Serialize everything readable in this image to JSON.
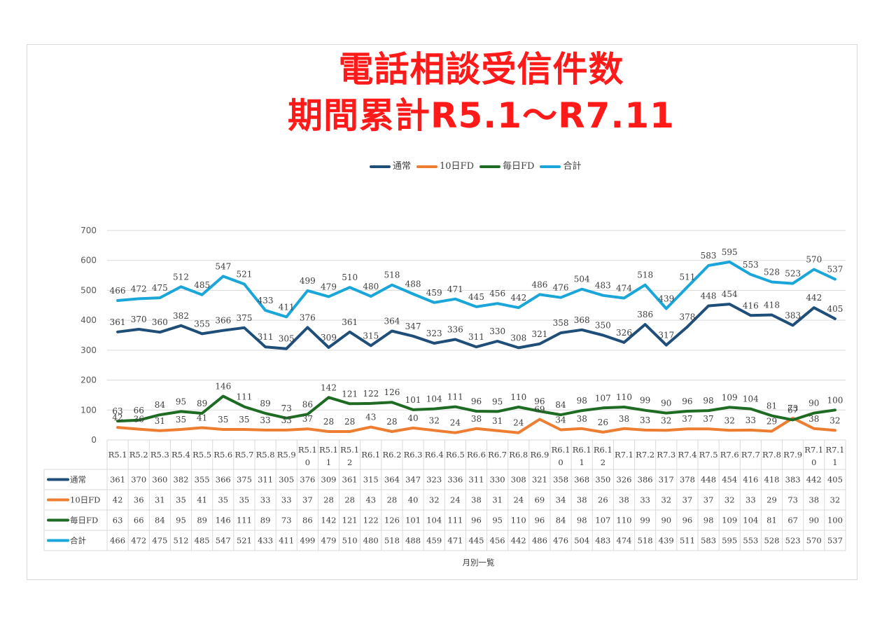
{
  "title_lines": [
    "電話相談受信件数",
    "期間累計R5.1～R7.11"
  ],
  "colors": {
    "title": "#ff1a1a",
    "series": [
      "#1f4e79",
      "#ed7d31",
      "#1e6b23",
      "#1aa6d8"
    ]
  },
  "xaxis_title": "月別一覧",
  "chart_data": {
    "type": "line",
    "title": "電話相談受信件数 期間累計R5.1～R7.11",
    "xlabel": "月別一覧",
    "ylabel": "",
    "ylim": [
      0,
      700
    ],
    "yticks": [
      0,
      100,
      200,
      300,
      400,
      500,
      600,
      700
    ],
    "grid": true,
    "legend": "top-center",
    "data_table": true,
    "categories": [
      "R5.1",
      "R5.2",
      "R5.3",
      "R5.4",
      "R5.5",
      "R5.6",
      "R5.7",
      "R5.8",
      "R5.9",
      "R5.10",
      "R5.11",
      "R5.12",
      "R6.1",
      "R6.2",
      "R6.3",
      "R6.4",
      "R6.5",
      "R6.6",
      "R6.7",
      "R6.8",
      "R6.9",
      "R6.10",
      "R6.11",
      "R6.12",
      "R7.1",
      "R7.2",
      "R7.3",
      "R7.4",
      "R7.5",
      "R7.6",
      "R7.7",
      "R7.8",
      "R7.9",
      "R7.10",
      "R7.11"
    ],
    "series": [
      {
        "name": "通常",
        "color": "#1f4e79",
        "values": [
          361,
          370,
          360,
          382,
          355,
          366,
          375,
          311,
          305,
          376,
          309,
          361,
          315,
          364,
          347,
          323,
          336,
          311,
          330,
          308,
          321,
          358,
          368,
          350,
          326,
          386,
          317,
          378,
          448,
          454,
          416,
          418,
          383,
          442,
          405
        ]
      },
      {
        "name": "10日FD",
        "color": "#ed7d31",
        "values": [
          42,
          36,
          31,
          35,
          41,
          35,
          35,
          33,
          33,
          37,
          28,
          28,
          43,
          28,
          40,
          32,
          24,
          38,
          31,
          24,
          69,
          34,
          38,
          26,
          38,
          33,
          32,
          37,
          37,
          32,
          33,
          29,
          73,
          38,
          32
        ]
      },
      {
        "name": "毎日FD",
        "color": "#1e6b23",
        "values": [
          63,
          66,
          84,
          95,
          89,
          146,
          111,
          89,
          73,
          86,
          142,
          121,
          122,
          126,
          101,
          104,
          111,
          96,
          95,
          110,
          96,
          84,
          98,
          107,
          110,
          99,
          90,
          96,
          98,
          109,
          104,
          81,
          67,
          90,
          100
        ]
      },
      {
        "name": "合計",
        "color": "#1aa6d8",
        "values": [
          466,
          472,
          475,
          512,
          485,
          547,
          521,
          433,
          411,
          499,
          479,
          510,
          480,
          518,
          488,
          459,
          471,
          445,
          456,
          442,
          486,
          476,
          504,
          483,
          474,
          518,
          439,
          511,
          583,
          595,
          553,
          528,
          523,
          570,
          537
        ]
      }
    ]
  }
}
